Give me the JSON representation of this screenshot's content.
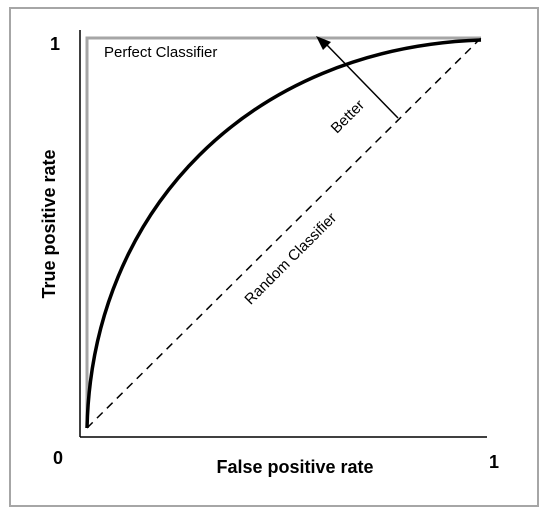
{
  "labels": {
    "y_max": "1",
    "origin": "0",
    "x_max": "1",
    "x_axis": "False positive rate",
    "y_axis": "True positive rate",
    "perfect": "Perfect Classifier",
    "random": "Random Classifier",
    "better": "Better"
  },
  "colors": {
    "frame": "#a6a6a6",
    "axes": "#000000",
    "perfect_line": "#a6a6a6",
    "roc_curve": "#000000",
    "random_line": "#000000"
  }
}
